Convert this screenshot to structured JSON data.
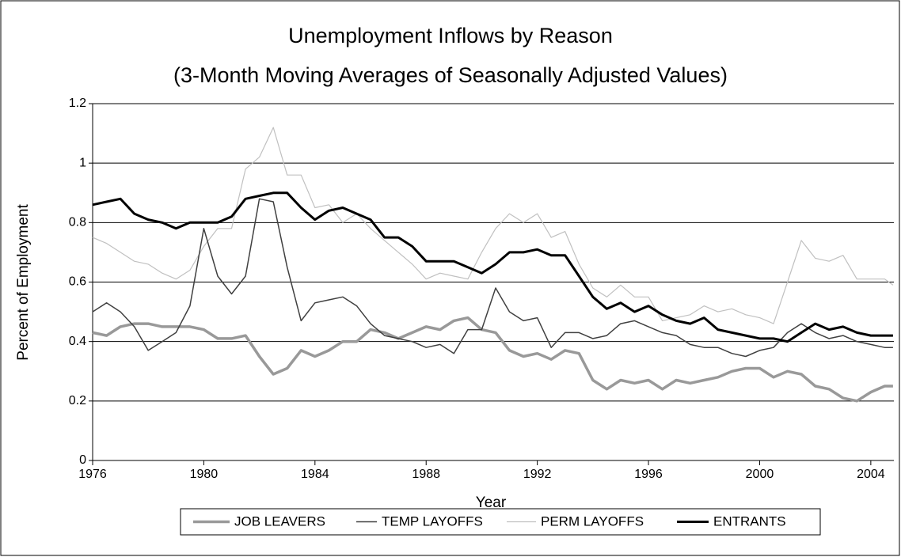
{
  "chart_data": {
    "type": "line",
    "title": "Unemployment Inflows by Reason",
    "subtitle": "(3-Month Moving Averages of  Seasonally Adjusted Values)",
    "x_label": "Year",
    "y_label": "Percent of Employment",
    "x": [
      1976,
      1976.5,
      1977,
      1977.5,
      1978,
      1978.5,
      1979,
      1979.5,
      1980,
      1980.5,
      1981,
      1981.5,
      1982,
      1982.5,
      1983,
      1983.5,
      1984,
      1984.5,
      1985,
      1985.5,
      1986,
      1986.5,
      1987,
      1987.5,
      1988,
      1988.5,
      1989,
      1989.5,
      1990,
      1990.5,
      1991,
      1991.5,
      1992,
      1992.5,
      1993,
      1993.5,
      1994,
      1994.5,
      1995,
      1995.5,
      1996,
      1996.5,
      1997,
      1997.5,
      1998,
      1998.5,
      1999,
      1999.5,
      2000,
      2000.5,
      2001,
      2001.5,
      2002,
      2002.5,
      2003,
      2003.5,
      2004,
      2004.5,
      2004.8
    ],
    "series": [
      {
        "name": "JOB LEAVERS",
        "color": "#999999",
        "values": [
          0.43,
          0.42,
          0.45,
          0.46,
          0.46,
          0.45,
          0.45,
          0.45,
          0.44,
          0.41,
          0.41,
          0.42,
          0.35,
          0.29,
          0.31,
          0.37,
          0.35,
          0.37,
          0.4,
          0.4,
          0.44,
          0.43,
          0.41,
          0.43,
          0.45,
          0.44,
          0.47,
          0.48,
          0.44,
          0.43,
          0.37,
          0.35,
          0.36,
          0.34,
          0.37,
          0.36,
          0.27,
          0.24,
          0.27,
          0.26,
          0.27,
          0.24,
          0.27,
          0.26,
          0.27,
          0.28,
          0.3,
          0.31,
          0.31,
          0.28,
          0.3,
          0.29,
          0.25,
          0.24,
          0.21,
          0.2,
          0.23,
          0.25,
          0.25
        ]
      },
      {
        "name": "TEMP LAYOFFS",
        "color": "#404040",
        "values": [
          0.5,
          0.53,
          0.5,
          0.45,
          0.37,
          0.4,
          0.43,
          0.52,
          0.78,
          0.62,
          0.56,
          0.62,
          0.88,
          0.87,
          0.65,
          0.47,
          0.53,
          0.54,
          0.55,
          0.52,
          0.46,
          0.42,
          0.41,
          0.4,
          0.38,
          0.39,
          0.36,
          0.44,
          0.44,
          0.58,
          0.5,
          0.47,
          0.48,
          0.38,
          0.43,
          0.43,
          0.41,
          0.42,
          0.46,
          0.47,
          0.45,
          0.43,
          0.42,
          0.39,
          0.38,
          0.38,
          0.36,
          0.35,
          0.37,
          0.38,
          0.43,
          0.46,
          0.43,
          0.41,
          0.42,
          0.4,
          0.39,
          0.38,
          0.38
        ]
      },
      {
        "name": "PERM LAYOFFS",
        "color": "#c0c0c0",
        "values": [
          0.75,
          0.73,
          0.7,
          0.67,
          0.66,
          0.63,
          0.61,
          0.64,
          0.72,
          0.78,
          0.78,
          0.98,
          1.02,
          1.12,
          0.96,
          0.96,
          0.85,
          0.86,
          0.8,
          0.83,
          0.78,
          0.74,
          0.7,
          0.66,
          0.61,
          0.63,
          0.62,
          0.61,
          0.7,
          0.78,
          0.83,
          0.8,
          0.83,
          0.75,
          0.77,
          0.66,
          0.58,
          0.55,
          0.59,
          0.55,
          0.55,
          0.47,
          0.48,
          0.49,
          0.52,
          0.5,
          0.51,
          0.49,
          0.48,
          0.46,
          0.6,
          0.74,
          0.68,
          0.67,
          0.69,
          0.61,
          0.61,
          0.61,
          0.59
        ]
      },
      {
        "name": "ENTRANTS",
        "color": "#000000",
        "values": [
          0.86,
          0.87,
          0.88,
          0.83,
          0.81,
          0.8,
          0.78,
          0.8,
          0.8,
          0.8,
          0.82,
          0.88,
          0.89,
          0.9,
          0.9,
          0.85,
          0.81,
          0.84,
          0.85,
          0.83,
          0.81,
          0.75,
          0.75,
          0.72,
          0.67,
          0.67,
          0.67,
          0.65,
          0.63,
          0.66,
          0.7,
          0.7,
          0.71,
          0.69,
          0.69,
          0.62,
          0.55,
          0.51,
          0.53,
          0.5,
          0.52,
          0.49,
          0.47,
          0.46,
          0.48,
          0.44,
          0.43,
          0.42,
          0.41,
          0.41,
          0.4,
          0.43,
          0.46,
          0.44,
          0.45,
          0.43,
          0.42,
          0.42,
          0.42
        ]
      }
    ],
    "xlim": [
      1976,
      2004.83
    ],
    "xticks": [
      1976,
      1980,
      1984,
      1988,
      1992,
      1996,
      2000,
      2004
    ],
    "ylim": [
      0,
      1.2
    ],
    "yticks": [
      0,
      0.2,
      0.4,
      0.6,
      0.8,
      1,
      1.2
    ],
    "grid": true,
    "legend": "bottom"
  }
}
